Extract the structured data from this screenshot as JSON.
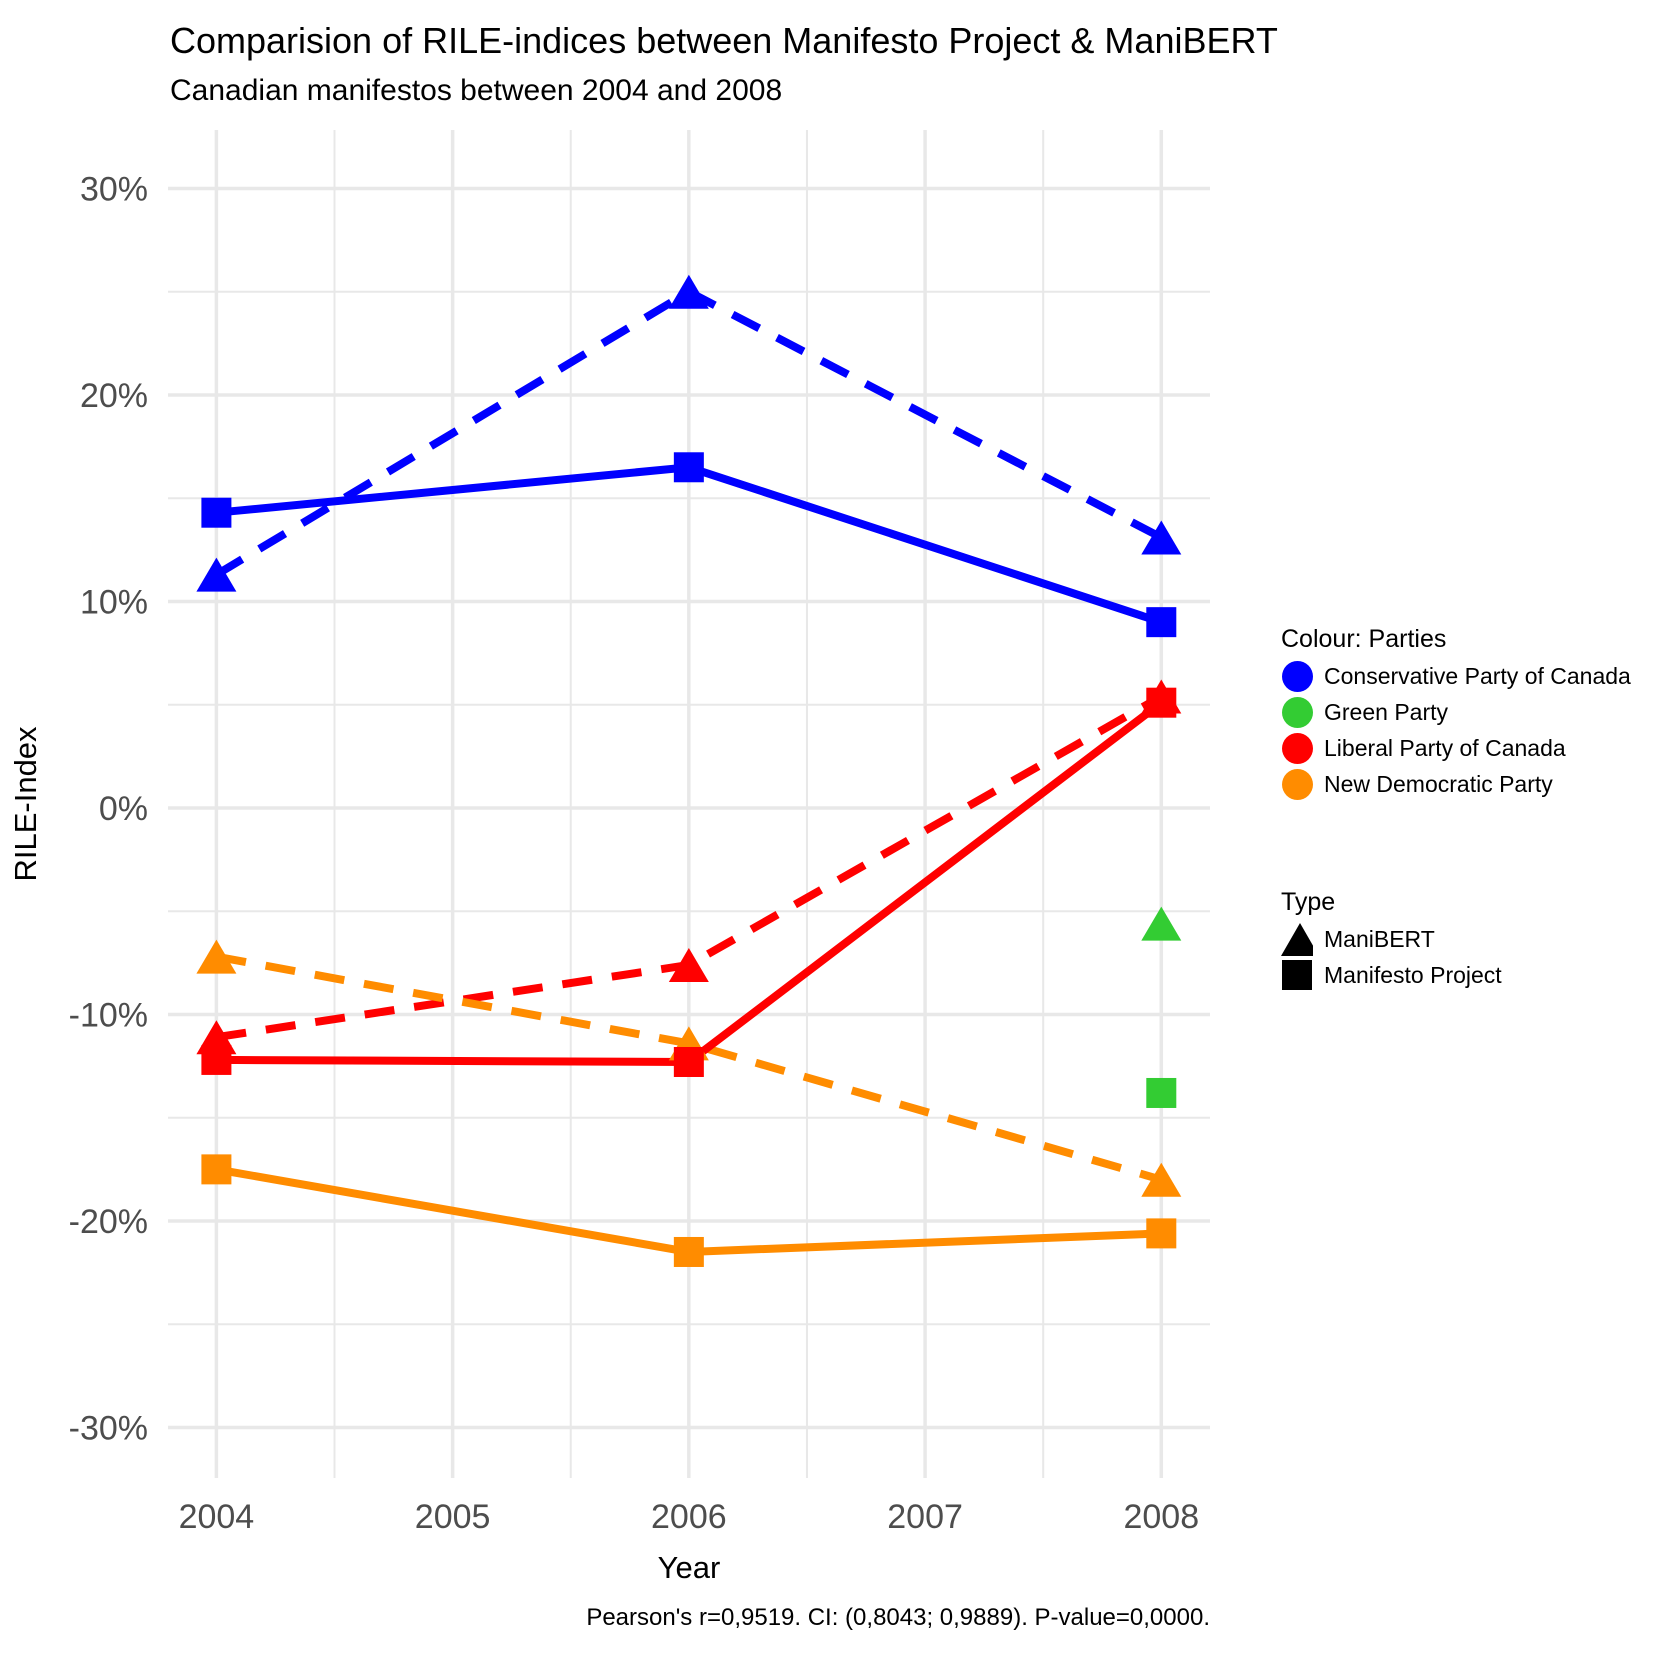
{
  "chart_data": {
    "type": "line",
    "title": "Comparision of RILE-indices between Manifesto Project & ManiBERT",
    "subtitle": "Canadian manifestos between 2004 and 2008",
    "caption": "Pearson's r=0,9519. CI: (0,8043; 0,9889). P-value=0,0000.",
    "xlabel": "Year",
    "ylabel": "RILE-Index",
    "x_ticks": [
      {
        "label": "2004",
        "value": 2004
      },
      {
        "label": "2005",
        "value": 2005
      },
      {
        "label": "2006",
        "value": 2006
      },
      {
        "label": "2007",
        "value": 2007
      },
      {
        "label": "2008",
        "value": 2008
      }
    ],
    "y_ticks": [
      {
        "label": "30%",
        "value": 30
      },
      {
        "label": "20%",
        "value": 20
      },
      {
        "label": "10%",
        "value": 10
      },
      {
        "label": "0%",
        "value": 0
      },
      {
        "label": "-10%",
        "value": -10
      },
      {
        "label": "-20%",
        "value": -20
      },
      {
        "label": "-30%",
        "value": -30
      }
    ],
    "y_minor_ticks": [
      25,
      15,
      5,
      -5,
      -15,
      -25
    ],
    "x_minor_ticks": [
      2004.5,
      2005.5,
      2006.5,
      2007.5
    ],
    "ylim": [
      -32.5,
      32.5
    ],
    "grid": true,
    "legend_position": "right",
    "colors": {
      "conservative": "#0000FF",
      "green": "#33CC33",
      "liberal": "#FF0000",
      "ndp": "#FF8C00",
      "grid": "#E8E8E8",
      "tick_text": "#4D4D4D"
    },
    "series": [
      {
        "name": "Conservative Party of Canada - ManiBERT",
        "party": "Conservative Party of Canada",
        "kind": "ManiBERT",
        "color": "#0000FF",
        "marker": "triangle",
        "line": "dashed",
        "x": [
          2004,
          2006,
          2008
        ],
        "y": [
          11.3,
          25.0,
          13.1
        ]
      },
      {
        "name": "Conservative Party of Canada - Manifesto Project",
        "party": "Conservative Party of Canada",
        "kind": "Manifesto Project",
        "color": "#0000FF",
        "marker": "square",
        "line": "solid",
        "x": [
          2004,
          2006,
          2008
        ],
        "y": [
          14.3,
          16.5,
          9.0
        ]
      },
      {
        "name": "Liberal Party of Canada - ManiBERT",
        "party": "Liberal Party of Canada",
        "kind": "ManiBERT",
        "color": "#FF0000",
        "marker": "triangle",
        "line": "dashed",
        "x": [
          2004,
          2006,
          2008
        ],
        "y": [
          -11.1,
          -7.6,
          5.4
        ]
      },
      {
        "name": "Liberal Party of Canada - Manifesto Project",
        "party": "Liberal Party of Canada",
        "kind": "Manifesto Project",
        "color": "#FF0000",
        "marker": "square",
        "line": "solid",
        "x": [
          2004,
          2006,
          2008
        ],
        "y": [
          -12.2,
          -12.3,
          5.1
        ]
      },
      {
        "name": "New Democratic Party - ManiBERT",
        "party": "New Democratic Party",
        "kind": "ManiBERT",
        "color": "#FF8C00",
        "marker": "triangle",
        "line": "dashed",
        "x": [
          2004,
          2006,
          2008
        ],
        "y": [
          -7.2,
          -11.4,
          -18.0
        ]
      },
      {
        "name": "New Democratic Party - Manifesto Project",
        "party": "New Democratic Party",
        "kind": "Manifesto Project",
        "color": "#FF8C00",
        "marker": "square",
        "line": "solid",
        "x": [
          2004,
          2006,
          2008
        ],
        "y": [
          -17.5,
          -21.5,
          -20.6
        ]
      },
      {
        "name": "Green Party - ManiBERT",
        "party": "Green Party",
        "kind": "ManiBERT",
        "color": "#33CC33",
        "marker": "triangle",
        "line": "none",
        "x": [
          2008
        ],
        "y": [
          -5.6
        ]
      },
      {
        "name": "Green Party - Manifesto Project",
        "party": "Green Party",
        "kind": "Manifesto Project",
        "color": "#33CC33",
        "marker": "square",
        "line": "none",
        "x": [
          2008
        ],
        "y": [
          -13.8
        ]
      }
    ],
    "legends": [
      {
        "title": "Colour: Parties",
        "items": [
          {
            "label": "Conservative Party of Canada",
            "swatch": "circle",
            "color": "#0000FF"
          },
          {
            "label": "Green Party",
            "swatch": "circle",
            "color": "#33CC33"
          },
          {
            "label": "Liberal Party of Canada",
            "swatch": "circle",
            "color": "#FF0000"
          },
          {
            "label": "New Democratic Party",
            "swatch": "circle",
            "color": "#FF8C00"
          }
        ]
      },
      {
        "title": "Type",
        "items": [
          {
            "label": "ManiBERT",
            "swatch": "triangle",
            "color": "#000000"
          },
          {
            "label": "Manifesto Project",
            "swatch": "square",
            "color": "#000000"
          }
        ]
      }
    ]
  }
}
